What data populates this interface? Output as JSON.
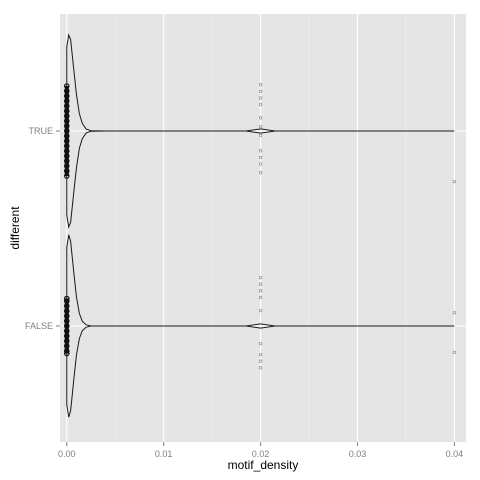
{
  "chart_data": {
    "type": "violin",
    "orientation": "horizontal",
    "xlabel": "motif_density",
    "ylabel": "different",
    "xlim": [
      -0.0007,
      0.0412
    ],
    "x_ticks": [
      0.0,
      0.01,
      0.02,
      0.03,
      0.04
    ],
    "x_tick_labels": [
      "0.00",
      "0.01",
      "0.02",
      "0.03",
      "0.04"
    ],
    "categories": [
      "TRUE",
      "FALSE"
    ],
    "grid": true,
    "legend": "none",
    "panel_color": "#e5e5e5",
    "line_color": "#1a1a1a",
    "point_color": "#8c8c8c",
    "series": [
      {
        "category": "TRUE",
        "x_range": [
          0.0,
          0.04
        ],
        "profile": [
          [
            0.0,
            0.88
          ],
          [
            0.0002,
            1.0
          ],
          [
            0.0004,
            0.95
          ],
          [
            0.0007,
            0.66
          ],
          [
            0.001,
            0.38
          ],
          [
            0.0013,
            0.18
          ],
          [
            0.0016,
            0.08
          ],
          [
            0.002,
            0.02
          ],
          [
            0.0025,
            0.003
          ],
          [
            0.004,
            0.0
          ],
          [
            0.0185,
            0.0
          ],
          [
            0.0193,
            0.012
          ],
          [
            0.02,
            0.022
          ],
          [
            0.0207,
            0.012
          ],
          [
            0.0215,
            0.0
          ],
          [
            0.04,
            0.0
          ]
        ],
        "points": [
          [
            0.0,
            0.0
          ],
          [
            0.0,
            0.1
          ],
          [
            0.0,
            -0.1
          ],
          [
            0.0,
            0.2
          ],
          [
            0.0,
            -0.2
          ],
          [
            0.0,
            0.3
          ],
          [
            0.0,
            -0.3
          ],
          [
            0.0,
            0.4
          ],
          [
            0.0,
            -0.4
          ],
          [
            0.0,
            0.5
          ],
          [
            0.0,
            -0.5
          ],
          [
            0.0,
            0.6
          ],
          [
            0.0,
            -0.6
          ],
          [
            0.0,
            0.7
          ],
          [
            0.0,
            -0.7
          ],
          [
            0.0,
            0.8
          ],
          [
            0.0,
            -0.8
          ],
          [
            0.0,
            0.9
          ],
          [
            0.0,
            -0.9
          ],
          [
            0.02,
            0.42
          ],
          [
            0.02,
            0.36
          ],
          [
            0.02,
            0.3
          ],
          [
            0.02,
            0.24
          ],
          [
            0.02,
            0.12
          ],
          [
            0.02,
            0.04
          ],
          [
            0.02,
            -0.04
          ],
          [
            0.02,
            -0.18
          ],
          [
            0.02,
            -0.24
          ],
          [
            0.02,
            -0.3
          ],
          [
            0.02,
            -0.38
          ],
          [
            0.04,
            -0.46
          ]
        ]
      },
      {
        "category": "FALSE",
        "x_range": [
          0.0,
          0.04
        ],
        "profile": [
          [
            0.0,
            0.82
          ],
          [
            0.0002,
            0.95
          ],
          [
            0.0004,
            0.88
          ],
          [
            0.0007,
            0.58
          ],
          [
            0.001,
            0.3
          ],
          [
            0.0013,
            0.13
          ],
          [
            0.0016,
            0.05
          ],
          [
            0.002,
            0.012
          ],
          [
            0.0025,
            0.0
          ],
          [
            0.0185,
            0.0
          ],
          [
            0.0193,
            0.012
          ],
          [
            0.02,
            0.022
          ],
          [
            0.0207,
            0.012
          ],
          [
            0.0215,
            0.0
          ],
          [
            0.04,
            0.0
          ]
        ],
        "points": [
          [
            0.0,
            0.0
          ],
          [
            0.0,
            0.1
          ],
          [
            0.0,
            -0.1
          ],
          [
            0.0,
            0.2
          ],
          [
            0.0,
            -0.2
          ],
          [
            0.0,
            0.3
          ],
          [
            0.0,
            -0.3
          ],
          [
            0.0,
            0.4
          ],
          [
            0.0,
            -0.4
          ],
          [
            0.0,
            0.5
          ],
          [
            0.0,
            -0.5
          ],
          [
            0.0,
            0.55
          ],
          [
            0.0,
            -0.55
          ],
          [
            0.02,
            0.44
          ],
          [
            0.02,
            0.38
          ],
          [
            0.02,
            0.32
          ],
          [
            0.02,
            0.26
          ],
          [
            0.02,
            0.14
          ],
          [
            0.02,
            -0.16
          ],
          [
            0.02,
            -0.26
          ],
          [
            0.02,
            -0.32
          ],
          [
            0.02,
            -0.38
          ],
          [
            0.04,
            0.12
          ],
          [
            0.04,
            -0.24
          ]
        ]
      }
    ]
  }
}
